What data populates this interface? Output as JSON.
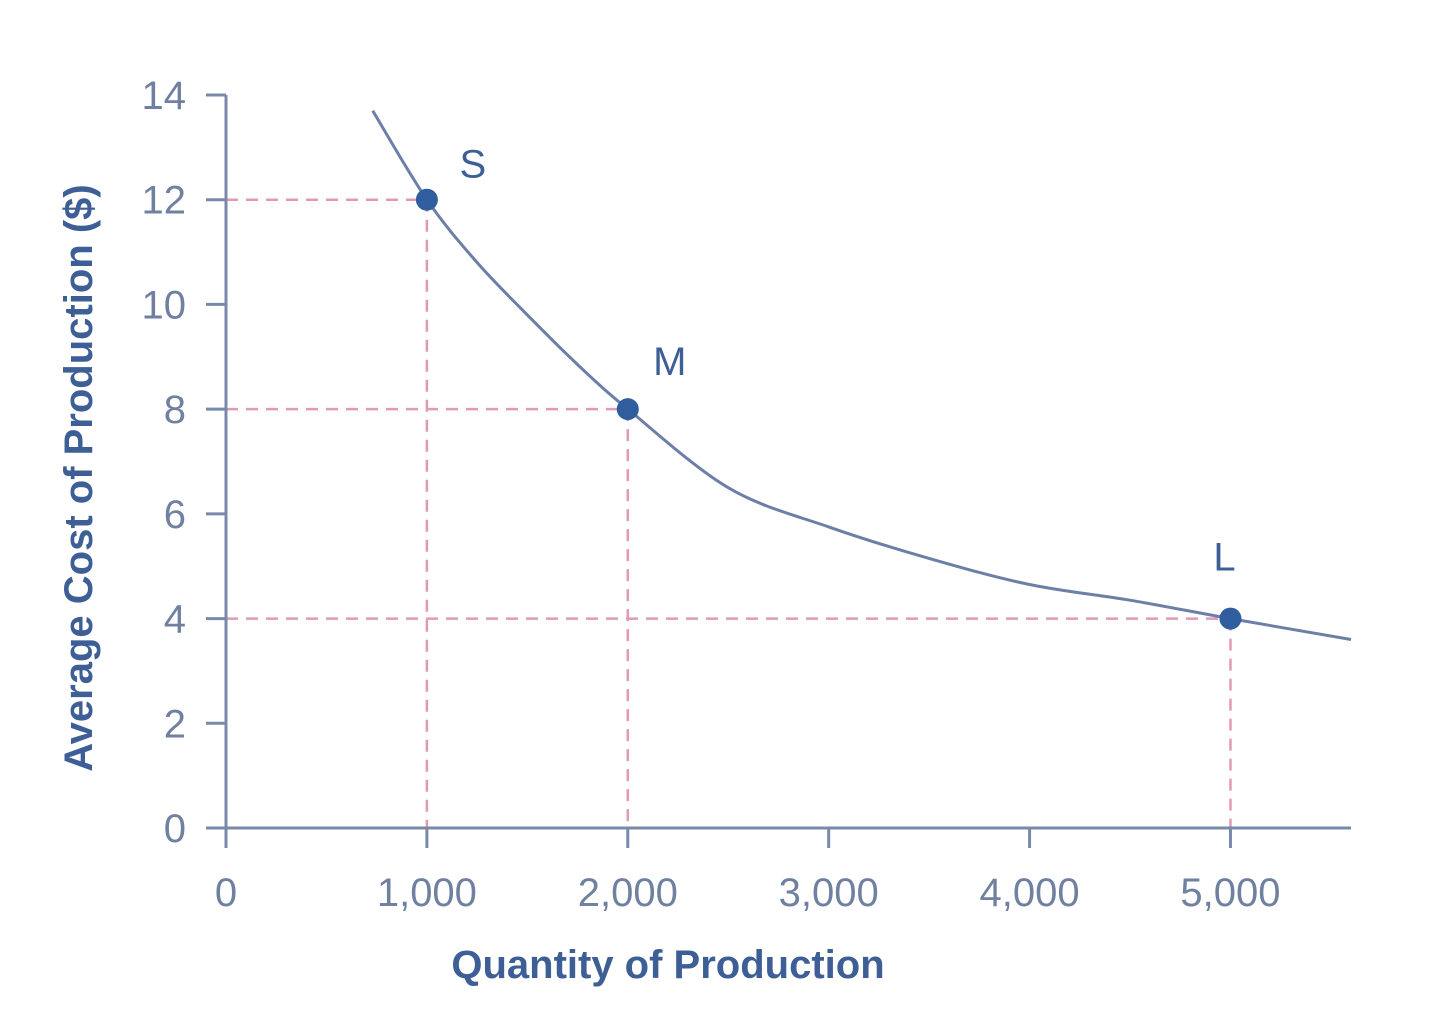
{
  "chart_data": {
    "type": "line",
    "title": "",
    "xlabel": "Quantity of Production",
    "ylabel": "Average Cost of Production ($)",
    "xlim": [
      0,
      5600
    ],
    "ylim": [
      0,
      14
    ],
    "x_ticks": [
      0,
      1000,
      2000,
      3000,
      4000,
      5000
    ],
    "x_tick_labels": [
      "0",
      "1,000",
      "2,000",
      "3,000",
      "4,000",
      "5,000"
    ],
    "y_ticks": [
      0,
      2,
      4,
      6,
      8,
      10,
      12,
      14
    ],
    "y_tick_labels": [
      "0",
      "2",
      "4",
      "6",
      "8",
      "10",
      "12",
      "14"
    ],
    "grid": false,
    "series": [
      {
        "x": [
          730,
          1000,
          1250,
          1500,
          1750,
          2000,
          2500,
          3000,
          3500,
          4000,
          4500,
          5000,
          5600
        ],
        "values": [
          13.7,
          12.0,
          10.8,
          9.8,
          8.85,
          8.0,
          6.5,
          5.75,
          5.15,
          4.65,
          4.35,
          4.0,
          3.6
        ]
      }
    ],
    "points": [
      {
        "label": "S",
        "x": 1000,
        "y": 12
      },
      {
        "label": "M",
        "x": 2000,
        "y": 8
      },
      {
        "label": "L",
        "x": 5000,
        "y": 4
      }
    ],
    "colors": {
      "curve": "#6c7fa6",
      "points": "#2f5d9e",
      "guides": "#e19ab5",
      "axis": "#7889ab",
      "tick_text": "#6f80a0",
      "title_text": "#3d5f95"
    }
  }
}
